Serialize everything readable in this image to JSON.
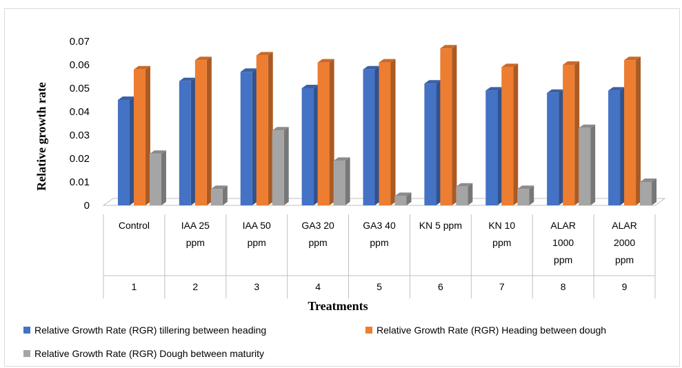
{
  "chart_data": {
    "type": "bar",
    "style": "3d-clustered-column",
    "xlabel": "Treatments",
    "ylabel": "Relative growth rate",
    "ylim": [
      0,
      0.07
    ],
    "yticks": [
      "0",
      "0.01",
      "0.02",
      "0.03",
      "0.04",
      "0.05",
      "0.06",
      "0.07"
    ],
    "grid": false,
    "legend_position": "bottom",
    "categories": [
      {
        "label": [
          "Control"
        ],
        "number": "1"
      },
      {
        "label": [
          "IAA 25",
          "ppm"
        ],
        "number": "2"
      },
      {
        "label": [
          "IAA 50",
          "ppm"
        ],
        "number": "3"
      },
      {
        "label": [
          "GA3 20",
          "ppm"
        ],
        "number": "4"
      },
      {
        "label": [
          "GA3 40",
          "ppm"
        ],
        "number": "5"
      },
      {
        "label": [
          "KN 5 ppm"
        ],
        "number": "6"
      },
      {
        "label": [
          "KN 10",
          "ppm"
        ],
        "number": "7"
      },
      {
        "label": [
          "ALAR",
          "1000",
          "ppm"
        ],
        "number": "8"
      },
      {
        "label": [
          "ALAR",
          "2000",
          "ppm"
        ],
        "number": "9"
      }
    ],
    "series": [
      {
        "name": "Relative Growth Rate (RGR) tillering between heading",
        "color": "#4472c4",
        "values": [
          0.045,
          0.053,
          0.057,
          0.05,
          0.058,
          0.052,
          0.049,
          0.048,
          0.049
        ]
      },
      {
        "name": "Relative Growth Rate (RGR) Heading between dough",
        "color": "#ed7d31",
        "values": [
          0.058,
          0.062,
          0.064,
          0.061,
          0.061,
          0.067,
          0.059,
          0.06,
          0.062
        ]
      },
      {
        "name": "Relative Growth Rate (RGR) Dough between maturity",
        "color": "#a5a5a5",
        "values": [
          0.022,
          0.007,
          0.032,
          0.019,
          0.004,
          0.008,
          0.007,
          0.033,
          0.01
        ]
      }
    ]
  }
}
